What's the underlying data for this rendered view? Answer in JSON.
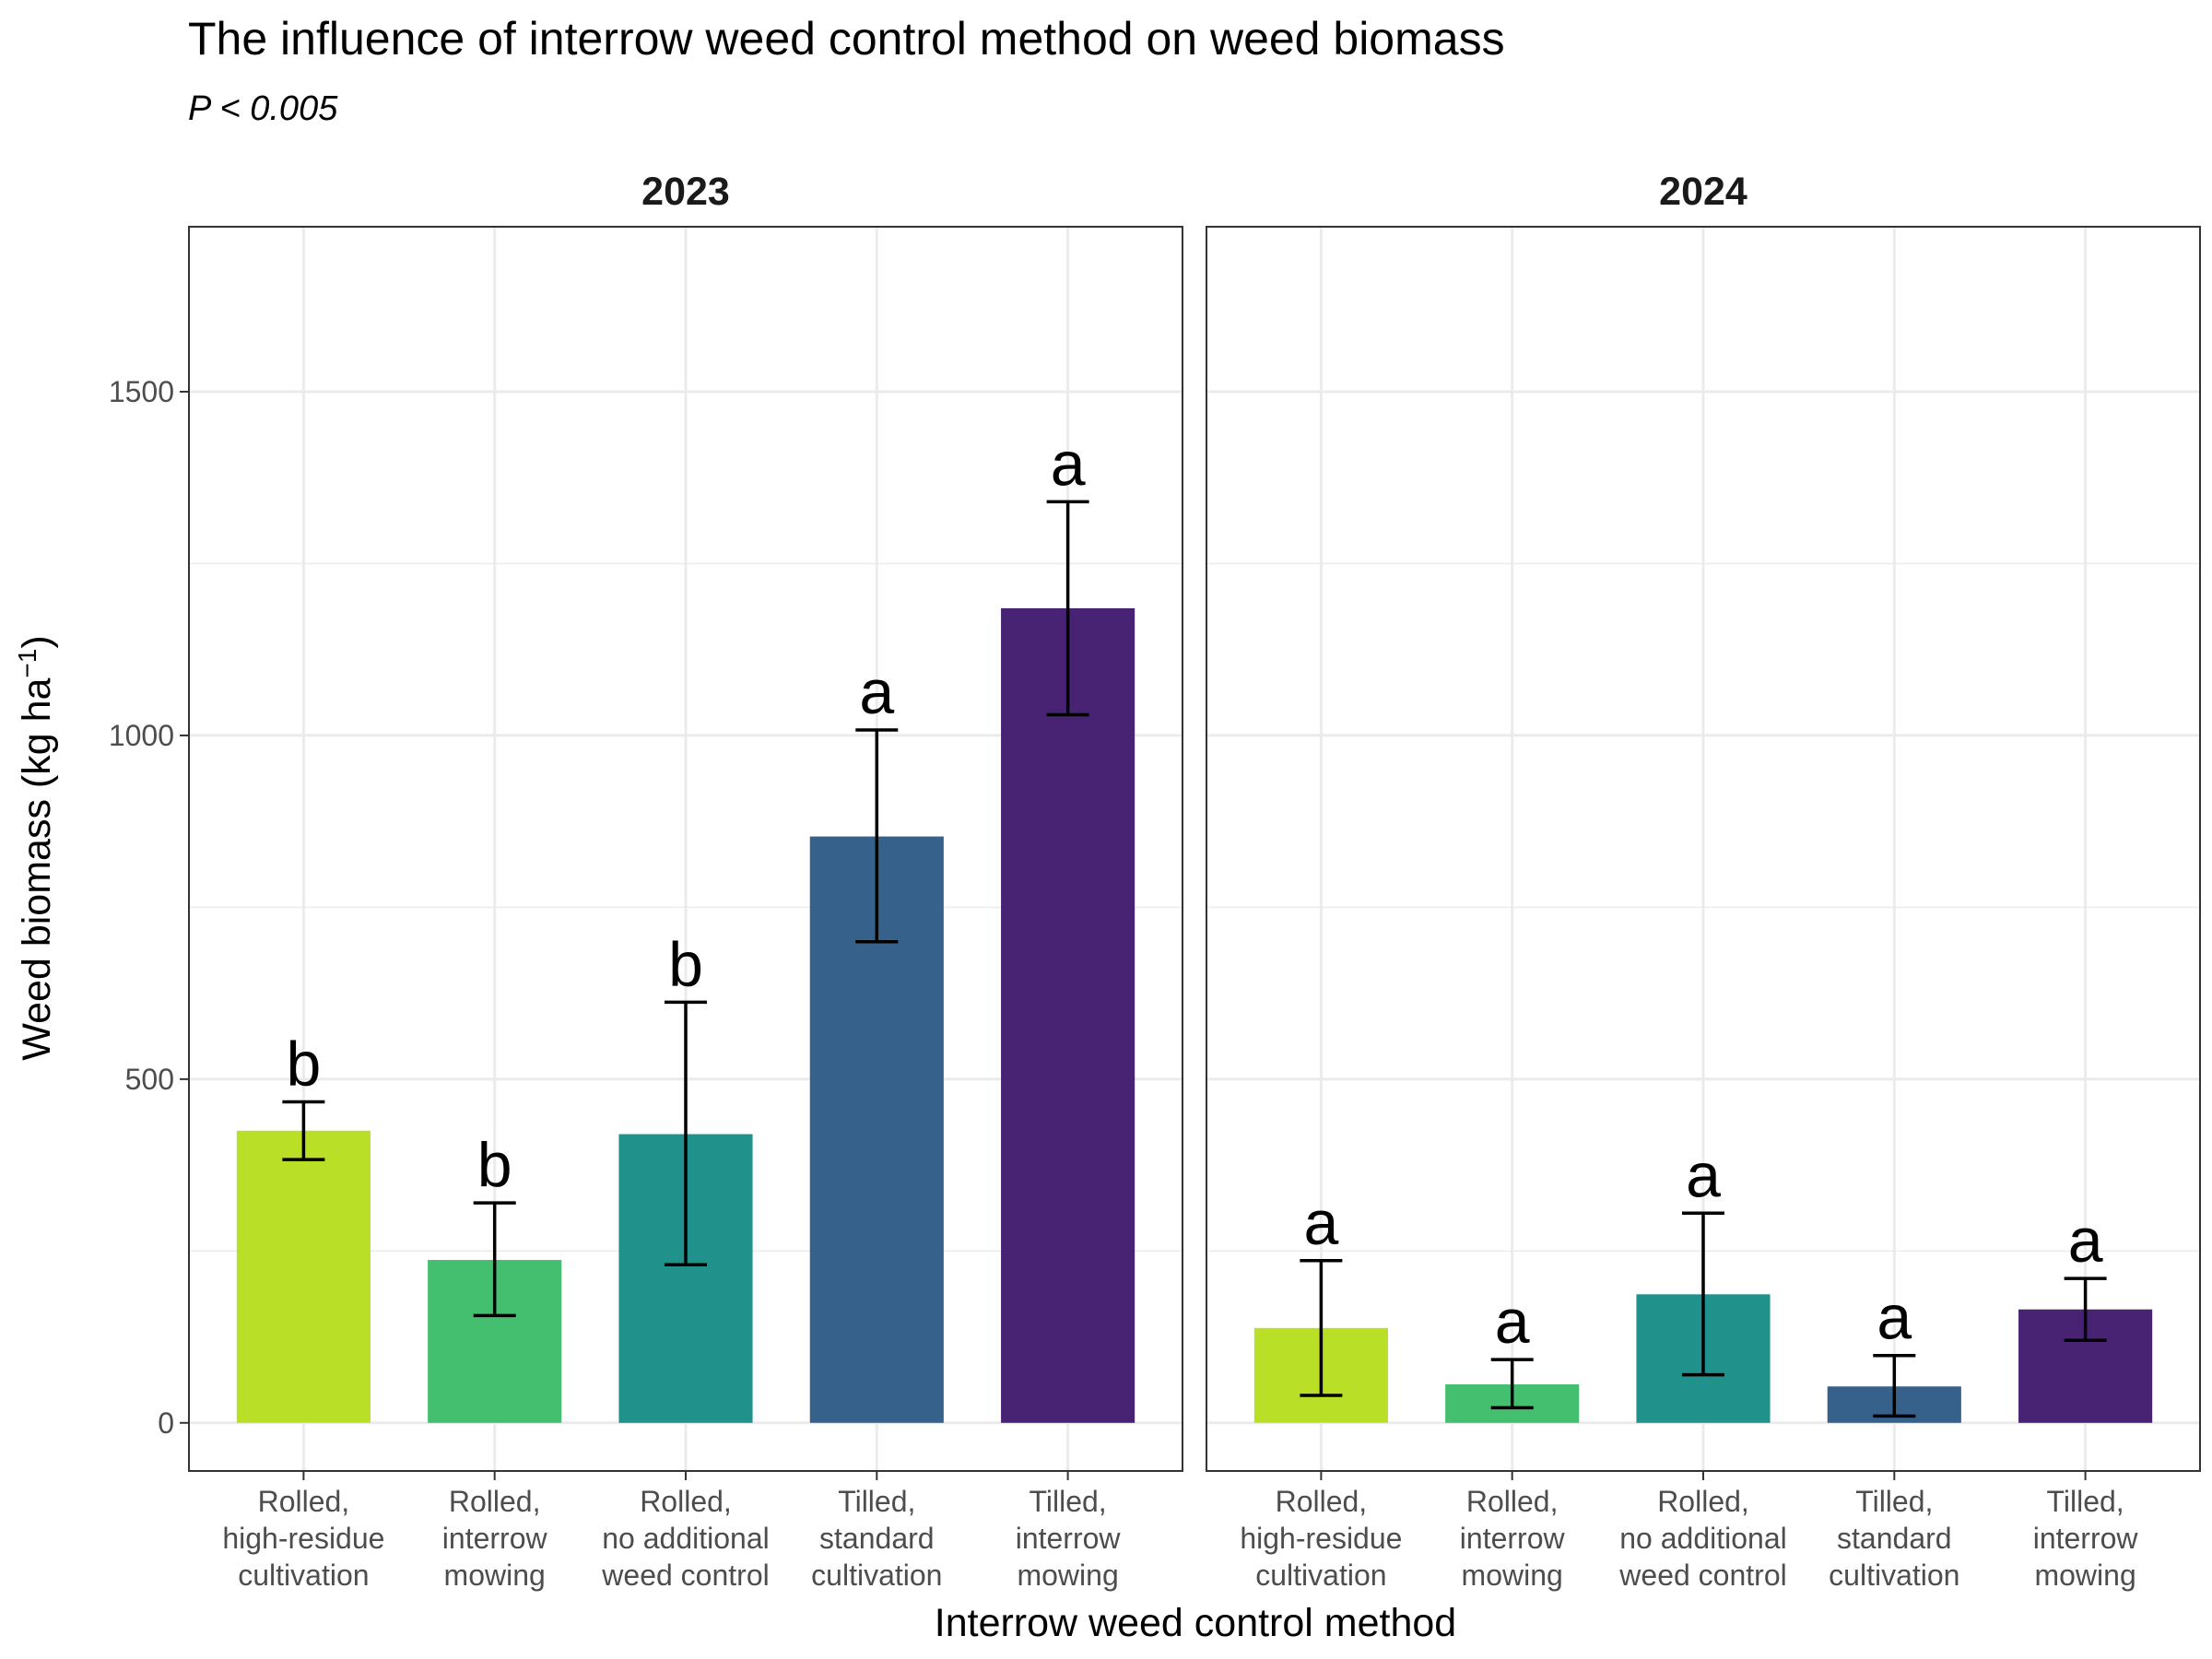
{
  "title": "The influence of interrow weed control method on weed biomass",
  "subtitle": "P < 0.005",
  "chart_data": {
    "type": "bar",
    "title": "The influence of interrow weed control method on weed biomass",
    "subtitle": "P < 0.005",
    "xlabel": "Interrow weed control method",
    "ylabel_main": "Weed biomass (kg ha",
    "ylabel_sup": "−1",
    "ylabel_close": ")",
    "ylim": [
      -70,
      1740
    ],
    "yticks": [
      0,
      500,
      1000,
      1500
    ],
    "grid": true,
    "categories": [
      [
        "Rolled,",
        "high-residue",
        "cultivation"
      ],
      [
        "Rolled,",
        "interrow",
        "mowing"
      ],
      [
        "Rolled,",
        "no additional",
        "weed control"
      ],
      [
        "Tilled,",
        "standard",
        "cultivation"
      ],
      [
        "Tilled,",
        "interrow",
        "mowing"
      ]
    ],
    "colors": [
      "#BADF27",
      "#44BF70",
      "#21918C",
      "#35618B",
      "#482374"
    ],
    "facets": [
      {
        "label": "2023",
        "values": [
          425,
          237,
          420,
          853,
          1185
        ],
        "error_low": [
          383,
          156,
          230,
          700,
          1030
        ],
        "error_high": [
          467,
          320,
          612,
          1008,
          1340
        ],
        "letters": [
          "b",
          "b",
          "b",
          "a",
          "a"
        ]
      },
      {
        "label": "2024",
        "values": [
          138,
          56,
          187,
          53,
          165
        ],
        "error_low": [
          40,
          22,
          70,
          10,
          120
        ],
        "error_high": [
          236,
          92,
          305,
          98,
          210
        ],
        "letters": [
          "a",
          "a",
          "a",
          "a",
          "a"
        ]
      }
    ]
  }
}
